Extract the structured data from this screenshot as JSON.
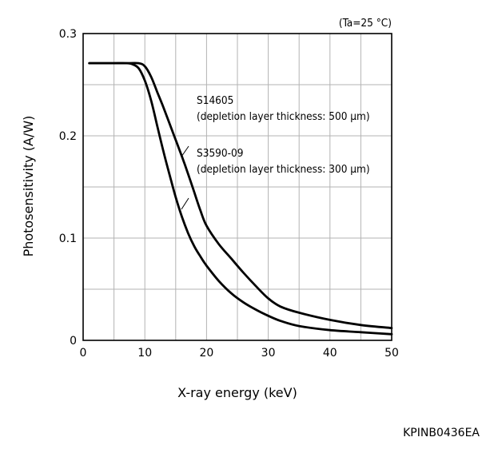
{
  "chart_data": {
    "type": "line",
    "title": "",
    "condition_label": "(Ta=25 °C)",
    "xlabel": "X-ray energy (keV)",
    "ylabel": "Photosensitivity (A/W)",
    "xlim": [
      0,
      50
    ],
    "ylim": [
      0,
      0.3
    ],
    "x_ticks": [
      0,
      10,
      20,
      30,
      40,
      50
    ],
    "y_ticks": [
      0,
      0.1,
      0.2,
      0.3
    ],
    "y_tick_labels": [
      "0",
      "0.1",
      "0.2",
      "0.3"
    ],
    "grid": true,
    "x_grid": [
      0,
      5,
      10,
      15,
      20,
      25,
      30,
      35,
      40,
      45,
      50
    ],
    "y_grid": [
      0,
      0.05,
      0.1,
      0.15,
      0.2,
      0.25,
      0.3
    ],
    "series": [
      {
        "name": "S14605",
        "annotation": "(depletion layer thickness: 500 μm)",
        "x": [
          1,
          3,
          5,
          7,
          9,
          10,
          11,
          12,
          13,
          14,
          15,
          16,
          17,
          18,
          19,
          20,
          22,
          24,
          26,
          28,
          30,
          32,
          35,
          40,
          45,
          50
        ],
        "y": [
          0.271,
          0.271,
          0.271,
          0.271,
          0.271,
          0.268,
          0.258,
          0.243,
          0.228,
          0.212,
          0.196,
          0.18,
          0.163,
          0.145,
          0.127,
          0.112,
          0.094,
          0.08,
          0.066,
          0.053,
          0.041,
          0.033,
          0.027,
          0.02,
          0.015,
          0.012
        ]
      },
      {
        "name": "S3590-09",
        "annotation": "(depletion layer thickness: 300 μm)",
        "x": [
          1,
          3,
          5,
          7,
          8,
          9,
          10,
          11,
          12,
          13,
          14,
          15,
          16,
          17,
          18,
          19,
          20,
          22,
          24,
          26,
          28,
          30,
          32,
          35,
          40,
          45,
          50
        ],
        "y": [
          0.271,
          0.271,
          0.271,
          0.271,
          0.27,
          0.266,
          0.254,
          0.235,
          0.21,
          0.185,
          0.162,
          0.14,
          0.121,
          0.105,
          0.092,
          0.082,
          0.073,
          0.058,
          0.046,
          0.037,
          0.03,
          0.024,
          0.019,
          0.014,
          0.01,
          0.008,
          0.006
        ]
      }
    ]
  },
  "footer": {
    "code": "KPINB0436EA"
  }
}
